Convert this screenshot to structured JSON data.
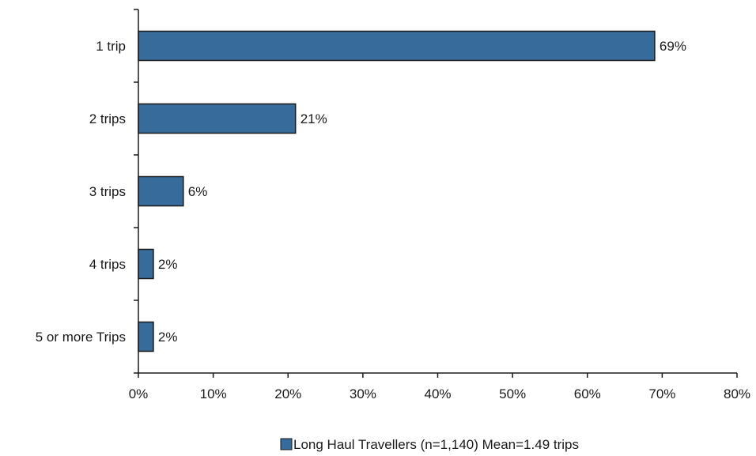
{
  "chart_data": {
    "type": "bar",
    "orientation": "horizontal",
    "categories": [
      "1 trip",
      "2 trips",
      "3 trips",
      "4 trips",
      "5 or more Trips"
    ],
    "series": [
      {
        "name": "Long Haul Travellers (n=1,140) Mean=1.49 trips",
        "values": [
          69,
          21,
          6,
          2,
          2
        ],
        "data_labels": [
          "69%",
          "21%",
          "6%",
          "2%",
          "2%"
        ],
        "color": "#376b9b"
      }
    ],
    "xlim": [
      0,
      80
    ],
    "x_ticks": [
      0,
      10,
      20,
      30,
      40,
      50,
      60,
      70,
      80
    ],
    "x_tick_labels": [
      "0%",
      "10%",
      "20%",
      "30%",
      "40%",
      "50%",
      "60%",
      "70%",
      "80%"
    ],
    "title": "",
    "xlabel": "",
    "ylabel": "",
    "grid": false,
    "legend_position": "bottom"
  },
  "colors": {
    "bar": "#376b9b",
    "bar_stroke": "#1a1a1a",
    "axis": "#1a1a1a"
  }
}
